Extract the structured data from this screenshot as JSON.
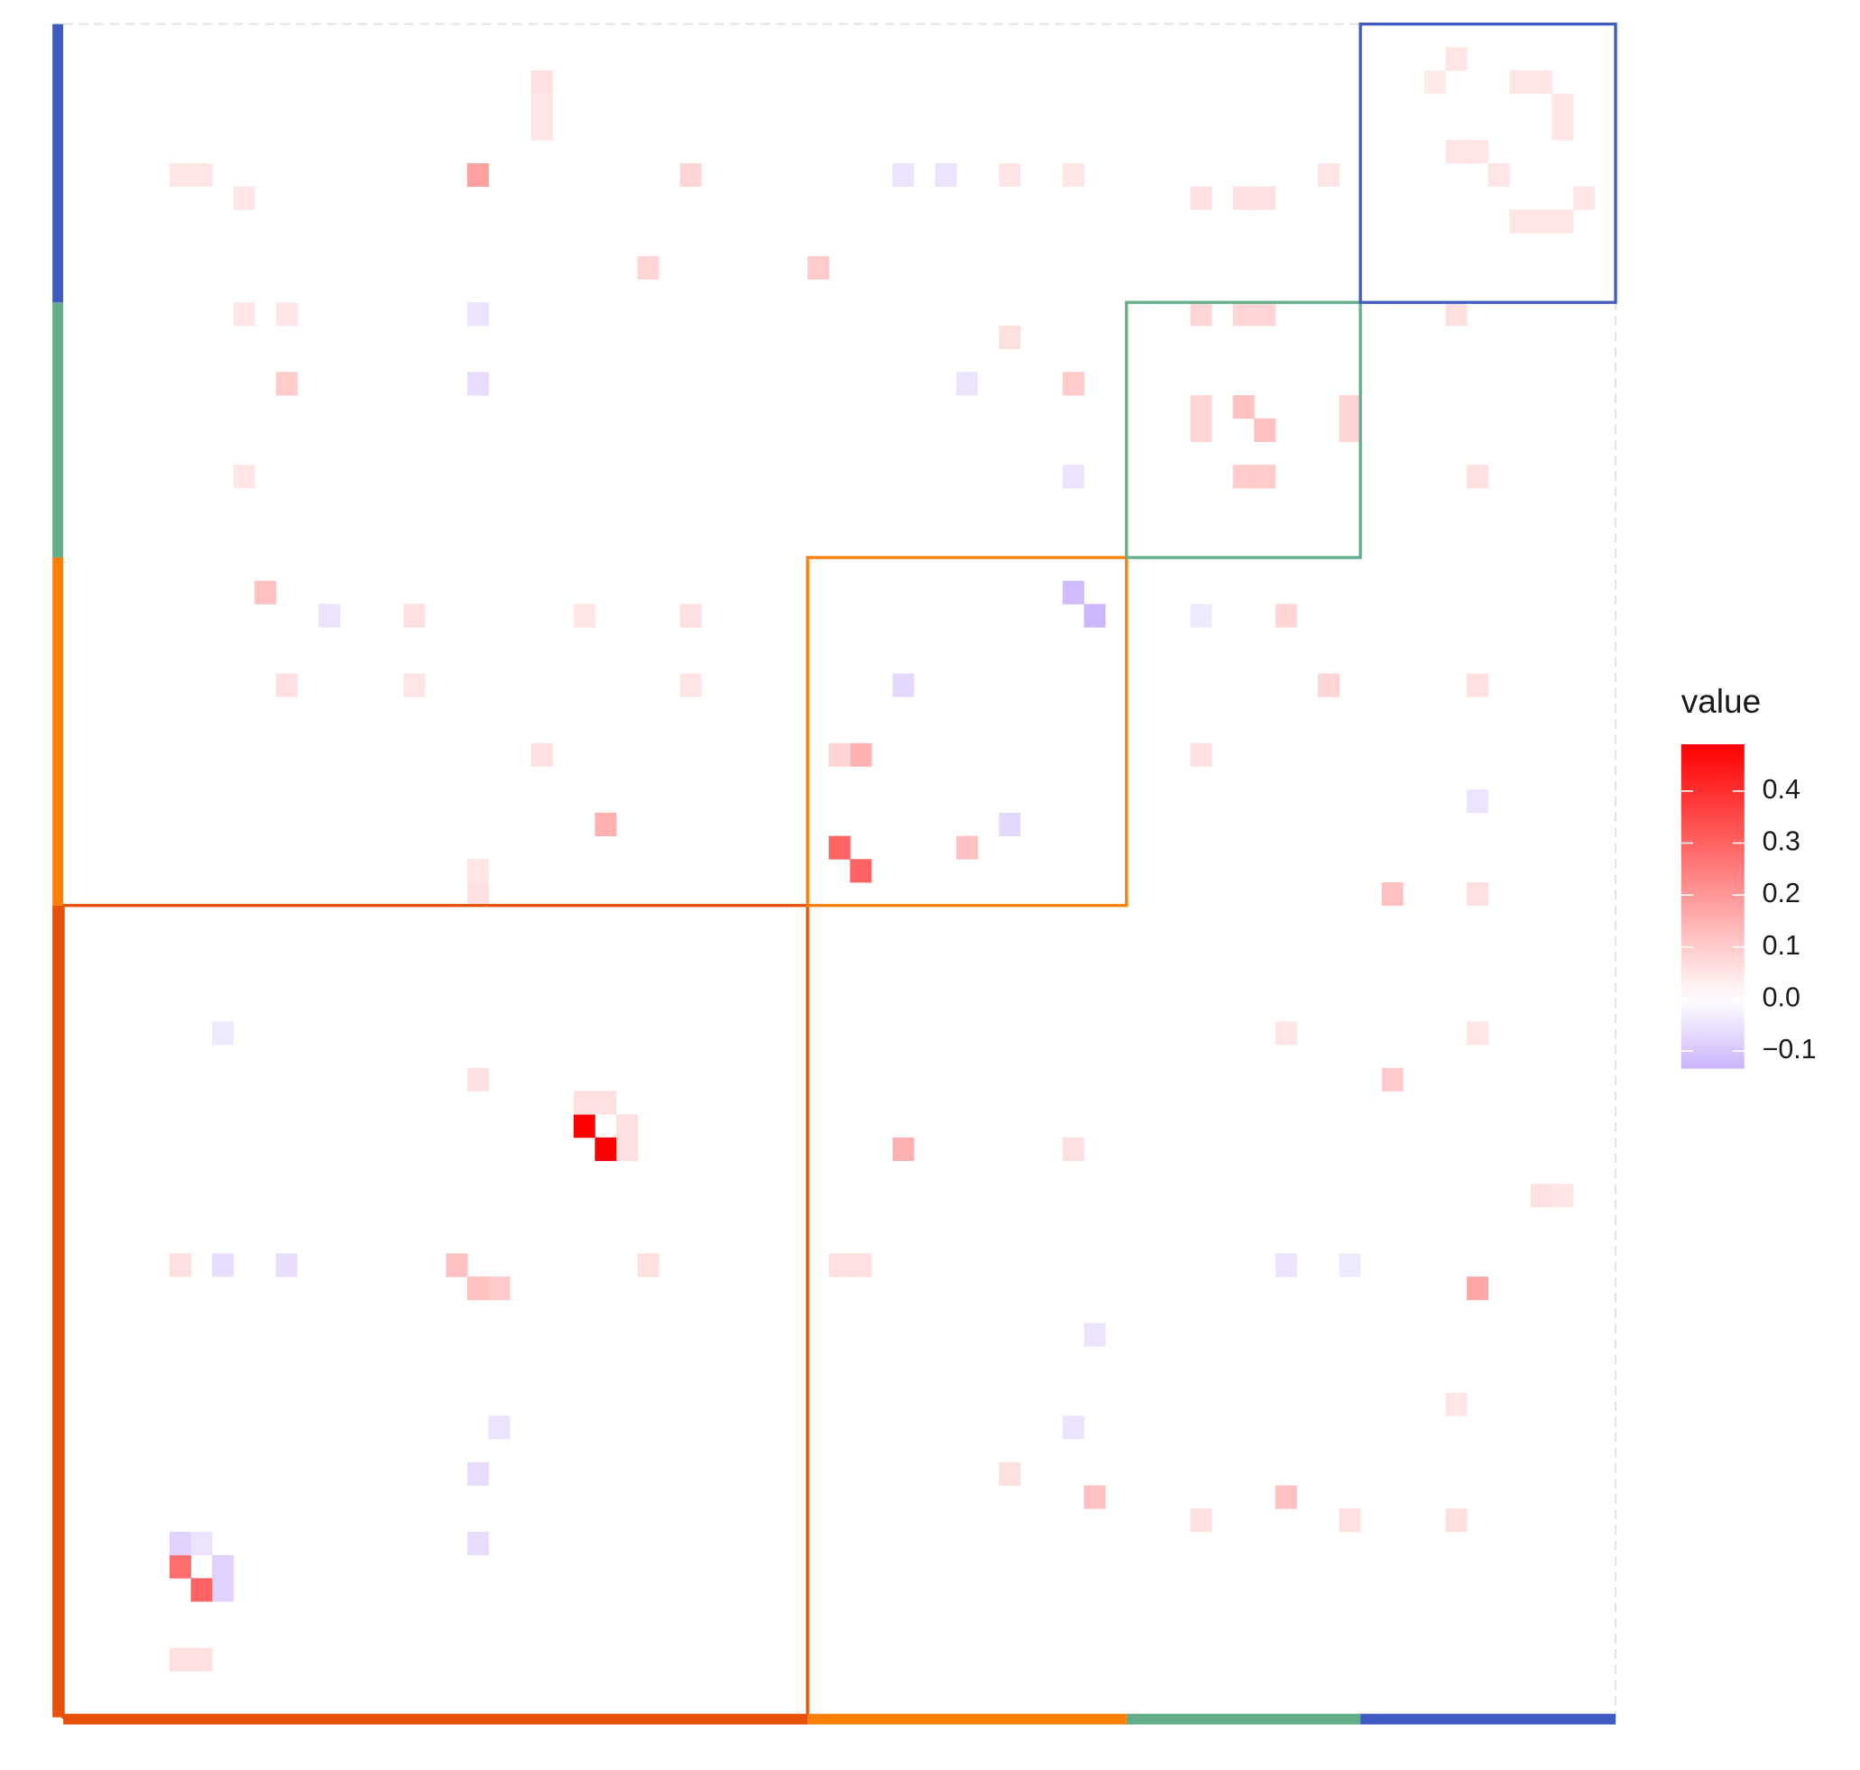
{
  "chart_data": {
    "type": "heatmap",
    "legend_title": "value",
    "xlim": [
      0,
      73
    ],
    "ylim": [
      73,
      0
    ],
    "x": [
      24,
      25,
      36,
      37,
      5,
      6,
      47,
      48,
      5,
      6,
      7,
      7,
      19,
      25,
      66,
      39,
      55,
      56,
      42,
      37,
      36,
      19,
      18,
      20,
      9,
      48,
      57,
      62,
      62,
      47,
      10,
      27,
      35,
      53,
      53,
      60,
      60,
      55,
      56,
      64,
      65,
      68,
      69,
      70,
      70,
      71,
      65,
      66,
      67,
      68,
      69,
      70,
      39,
      44,
      39,
      41,
      19,
      19,
      12,
      10,
      7,
      7,
      19,
      19,
      20,
      47,
      48,
      42,
      47,
      57,
      60,
      66,
      53,
      5,
      6,
      57,
      59,
      66,
      53,
      56,
      55,
      53,
      65,
      66,
      29,
      22,
      22,
      22,
      26,
      26,
      24,
      25,
      19,
      47,
      44,
      69,
      70,
      5,
      36,
      37,
      27,
      19,
      19,
      5,
      6,
      44,
      47,
      59,
      53,
      56,
      55,
      44,
      8,
      8,
      10,
      8,
      16,
      24,
      29,
      10,
      16,
      29,
      22,
      53,
      60,
      65,
      65,
      66,
      66,
      57
    ],
    "y": [
      47,
      48,
      35,
      36,
      66,
      67,
      24,
      25,
      65,
      65,
      66,
      67,
      6,
      34,
      54,
      48,
      16,
      17,
      35,
      31,
      31,
      54,
      53,
      54,
      24,
      63,
      63,
      37,
      45,
      15,
      15,
      10,
      10,
      16,
      17,
      16,
      17,
      19,
      19,
      2,
      1,
      2,
      2,
      3,
      4,
      7,
      5,
      5,
      6,
      8,
      8,
      8,
      28,
      34,
      6,
      6,
      15,
      12,
      25,
      53,
      53,
      43,
      62,
      65,
      60,
      60,
      56,
      15,
      19,
      53,
      53,
      33,
      25,
      70,
      70,
      25,
      28,
      28,
      31,
      12,
      12,
      12,
      12,
      19,
      6,
      2,
      3,
      4,
      47,
      48,
      46,
      46,
      45,
      48,
      62,
      50,
      50,
      53,
      53,
      53,
      53,
      37,
      36,
      6,
      6,
      6,
      6,
      6,
      7,
      7,
      7,
      13,
      7,
      12,
      12,
      19,
      25,
      25,
      25,
      28,
      28,
      28,
      31,
      64,
      64,
      64,
      59,
      37,
      43,
      43
    ],
    "values": [
      0.49,
      0.49,
      0.3,
      0.3,
      0.28,
      0.3,
      -0.12,
      -0.13,
      -0.08,
      -0.05,
      -0.08,
      -0.08,
      0.18,
      0.15,
      0.17,
      0.15,
      0.12,
      0.12,
      0.12,
      0.15,
      0.08,
      0.12,
      0.12,
      0.1,
      0.12,
      0.12,
      0.12,
      0.12,
      0.1,
      0.1,
      0.1,
      0.08,
      0.1,
      0.08,
      0.08,
      0.08,
      0.08,
      0.1,
      0.1,
      0.04,
      0.05,
      0.05,
      0.05,
      0.05,
      0.05,
      0.05,
      0.05,
      0.05,
      0.05,
      0.05,
      0.05,
      0.05,
      -0.07,
      -0.07,
      -0.05,
      -0.05,
      -0.06,
      -0.05,
      -0.05,
      -0.06,
      -0.06,
      -0.04,
      -0.06,
      -0.06,
      -0.05,
      -0.05,
      -0.05,
      -0.05,
      -0.05,
      -0.05,
      -0.04,
      -0.05,
      -0.04,
      0.06,
      0.06,
      0.08,
      0.08,
      0.06,
      0.06,
      0.08,
      0.08,
      0.08,
      0.06,
      0.06,
      0.08,
      0.06,
      0.05,
      0.05,
      0.06,
      0.06,
      0.06,
      0.06,
      0.06,
      0.06,
      0.06,
      0.06,
      0.05,
      0.06,
      0.06,
      0.06,
      0.06,
      0.06,
      0.05,
      0.05,
      0.05,
      0.05,
      0.05,
      0.05,
      0.06,
      0.06,
      0.06,
      0.06,
      0.05,
      0.05,
      0.05,
      0.05,
      0.06,
      0.05,
      0.06,
      0.06,
      0.05,
      0.05,
      0.06,
      0.06,
      0.06,
      0.06,
      0.05,
      0.06,
      0.05,
      0.05
    ],
    "colorscale": {
      "low": "#cbb4fb",
      "mid": "#ffffff",
      "high": "#ff0000"
    },
    "clim": [
      -0.134,
      0.49
    ],
    "cticks": [
      0.4,
      0.3,
      0.2,
      0.1,
      {
        "value": 0,
        "label": "0.0"
      },
      {
        "value": -0.1,
        "label": "−0.1"
      }
    ],
    "groups": [
      {
        "color": "#e6520a",
        "start": 0,
        "end": 35
      },
      {
        "color": "#fd7f08",
        "start": 35,
        "end": 50
      },
      {
        "color": "#63ae88",
        "start": 50,
        "end": 61
      },
      {
        "color": "#3f5bc2",
        "start": 61,
        "end": 73
      }
    ]
  }
}
